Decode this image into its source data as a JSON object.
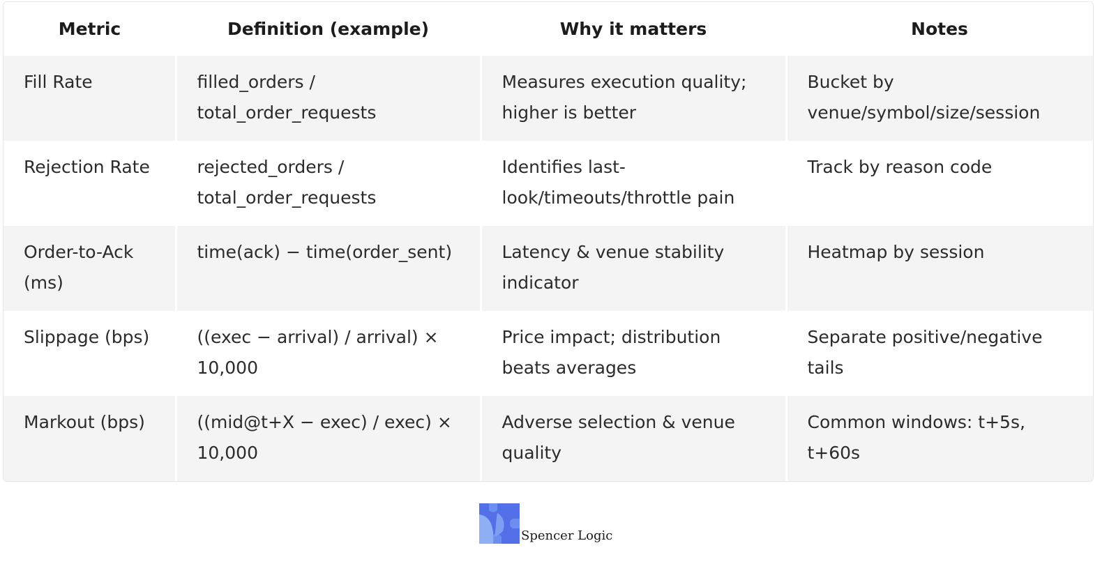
{
  "table": {
    "headers": [
      "Metric",
      "Definition (example)",
      "Why it matters",
      "Notes"
    ],
    "rows": [
      {
        "metric": "Fill Rate",
        "definition": "filled_orders / total_order_requests",
        "why": "Measures execution quality; higher is better",
        "notes": "Bucket by venue/symbol/size/session"
      },
      {
        "metric": "Rejection Rate",
        "definition": "rejected_orders / total_order_requests",
        "why": "Identifies last-look/timeouts/throttle pain",
        "notes": "Track by reason code"
      },
      {
        "metric": "Order-to-Ack (ms)",
        "definition": "time(ack) − time(order_sent)",
        "why": "Latency & venue stability indicator",
        "notes": "Heatmap by session"
      },
      {
        "metric": "Slippage (bps)",
        "definition": "((exec − arrival) / arrival) × 10,000",
        "why": "Price impact; distribution beats averages",
        "notes": "Separate positive/negative tails"
      },
      {
        "metric": "Markout (bps)",
        "definition": "((mid@t+X − exec) / exec) × 10,000",
        "why": "Adverse selection & venue quality",
        "notes": "Common windows: t+5s, t+60s"
      }
    ]
  },
  "branding": {
    "logo_text": "Spencer Logic",
    "logo_colors": [
      "#4f6ee6",
      "#6c8ef0",
      "#8fb0f5"
    ],
    "logo_icon": "puzzle-piece-icon"
  }
}
